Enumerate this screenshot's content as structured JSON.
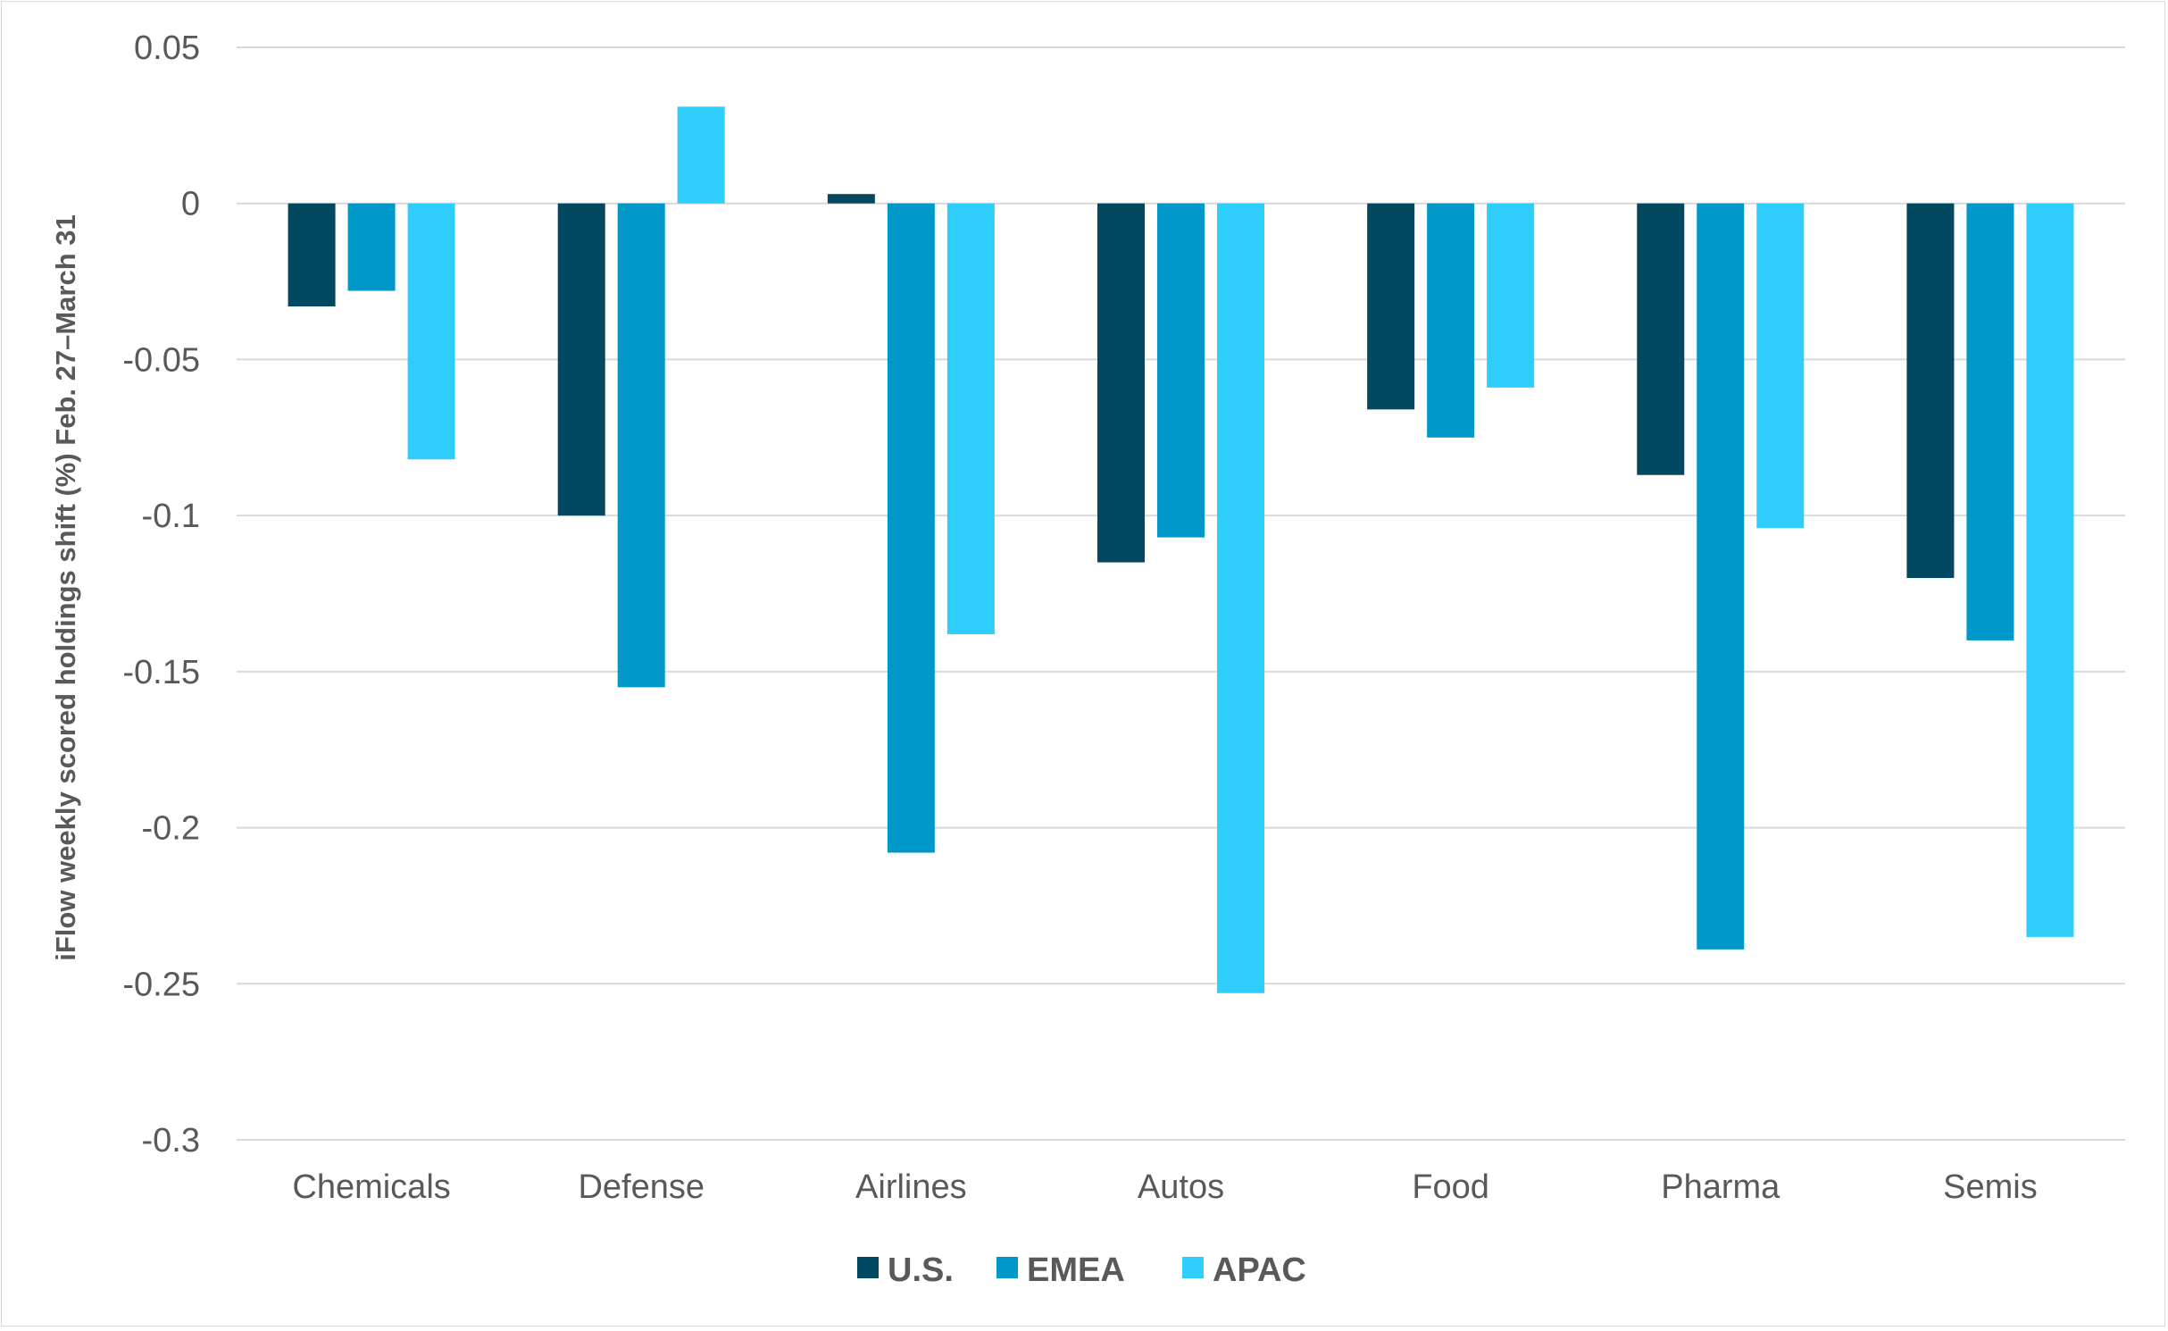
{
  "chart_data": {
    "type": "bar",
    "categories": [
      "Chemicals",
      "Defense",
      "Airlines",
      "Autos",
      "Food",
      "Pharma",
      "Semis"
    ],
    "series": [
      {
        "name": "U.S.",
        "color": "#004960",
        "values": [
          -0.033,
          -0.1,
          0.003,
          -0.115,
          -0.066,
          -0.087,
          -0.12
        ]
      },
      {
        "name": "EMEA",
        "color": "#0097c9",
        "values": [
          -0.028,
          -0.155,
          -0.208,
          -0.107,
          -0.075,
          -0.239,
          -0.14
        ]
      },
      {
        "name": "APAC",
        "color": "#2ecdfc",
        "values": [
          -0.082,
          0.031,
          -0.138,
          -0.253,
          -0.059,
          -0.104,
          -0.235
        ]
      }
    ],
    "ylabel": "iFlow weekly scored holdings shift (%) Feb. 27–March 31",
    "xlabel": "",
    "ylim": [
      -0.3,
      0.05
    ],
    "yticks": [
      0.05,
      0,
      -0.05,
      -0.1,
      -0.15,
      -0.2,
      -0.25,
      -0.3
    ],
    "ytick_labels": [
      "0.05",
      "0",
      "-0.05",
      "-0.1",
      "-0.15",
      "-0.2",
      "-0.25",
      "-0.3"
    ],
    "grid": true,
    "legend_position": "bottom",
    "gridline_color": "#d9d9d9"
  }
}
